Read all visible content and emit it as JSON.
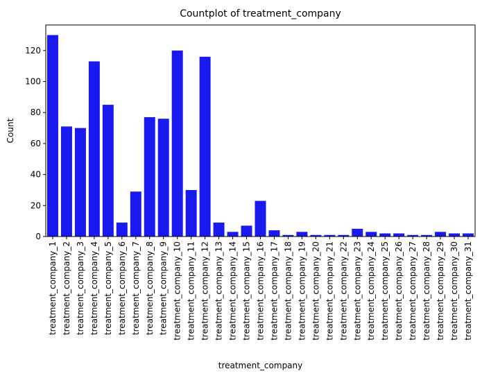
{
  "chart_data": {
    "type": "bar",
    "title": "Countplot of treatment_company",
    "xlabel": "treatment_company",
    "ylabel": "Count",
    "ylim": [
      0,
      136.5
    ],
    "yticks": [
      0,
      20,
      40,
      60,
      80,
      100,
      120
    ],
    "bar_color": "#1a1af0",
    "grid": false,
    "categories": [
      "treatment_company_1",
      "treatment_company_2",
      "treatment_company_3",
      "treatment_company_4",
      "treatment_company_5",
      "treatment_company_6",
      "treatment_company_7",
      "treatment_company_8",
      "treatment_company_9",
      "treatment_company_10",
      "treatment_company_11",
      "treatment_company_12",
      "treatment_company_13",
      "treatment_company_14",
      "treatment_company_15",
      "treatment_company_16",
      "treatment_company_17",
      "treatment_company_18",
      "treatment_company_19",
      "treatment_company_20",
      "treatment_company_21",
      "treatment_company_22",
      "treatment_company_23",
      "treatment_company_24",
      "treatment_company_25",
      "treatment_company_26",
      "treatment_company_27",
      "treatment_company_28",
      "treatment_company_29",
      "treatment_company_30",
      "treatment_company_31"
    ],
    "values": [
      130,
      71,
      70,
      113,
      85,
      9,
      29,
      77,
      76,
      120,
      30,
      116,
      9,
      3,
      7,
      23,
      4,
      1,
      3,
      1,
      1,
      1,
      5,
      3,
      2,
      2,
      1,
      1,
      3,
      2,
      2
    ]
  }
}
